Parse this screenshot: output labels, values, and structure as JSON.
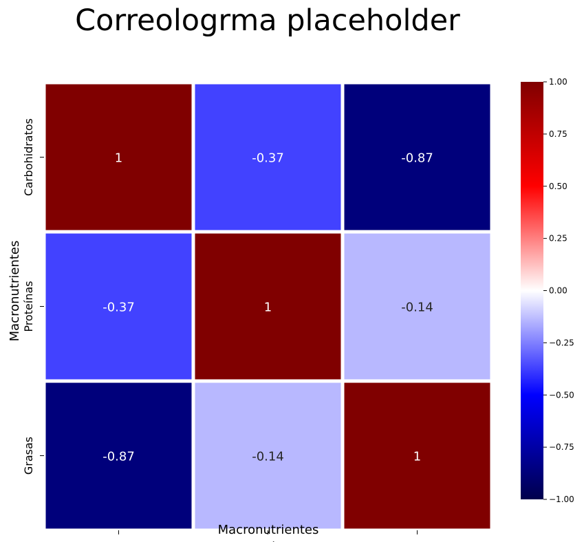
{
  "chart_data": {
    "type": "heatmap",
    "title_lines": [
      "Correologrma placeholder"
    ],
    "xlabel": "Macronutrientes",
    "ylabel": "Macronutrientes",
    "categories": [
      "Carbohidratos",
      "Proteínas",
      "Grasas"
    ],
    "matrix": [
      [
        1,
        -0.37,
        -0.87
      ],
      [
        -0.37,
        1,
        -0.14
      ],
      [
        -0.87,
        -0.14,
        1
      ]
    ],
    "cell_labels": [
      [
        "1",
        "-0.37",
        "-0.87"
      ],
      [
        "-0.37",
        "1",
        "-0.14"
      ],
      [
        "-0.87",
        "-0.14",
        "1"
      ]
    ],
    "vmin": -1,
    "vmax": 1,
    "colormap": "seismic",
    "colorbar_ticks": [
      1.0,
      0.75,
      0.5,
      0.25,
      0.0,
      -0.25,
      -0.5,
      -0.75,
      -1.0
    ],
    "colorbar_tick_labels": [
      "1.00",
      "0.75",
      "0.50",
      "0.25",
      "0.00",
      "−0.25",
      "−0.50",
      "−0.75",
      "−1.00"
    ],
    "colors": {
      "cell_border": "#ffffff",
      "text_light": "#ffffff",
      "text_dark": "#262626"
    }
  }
}
